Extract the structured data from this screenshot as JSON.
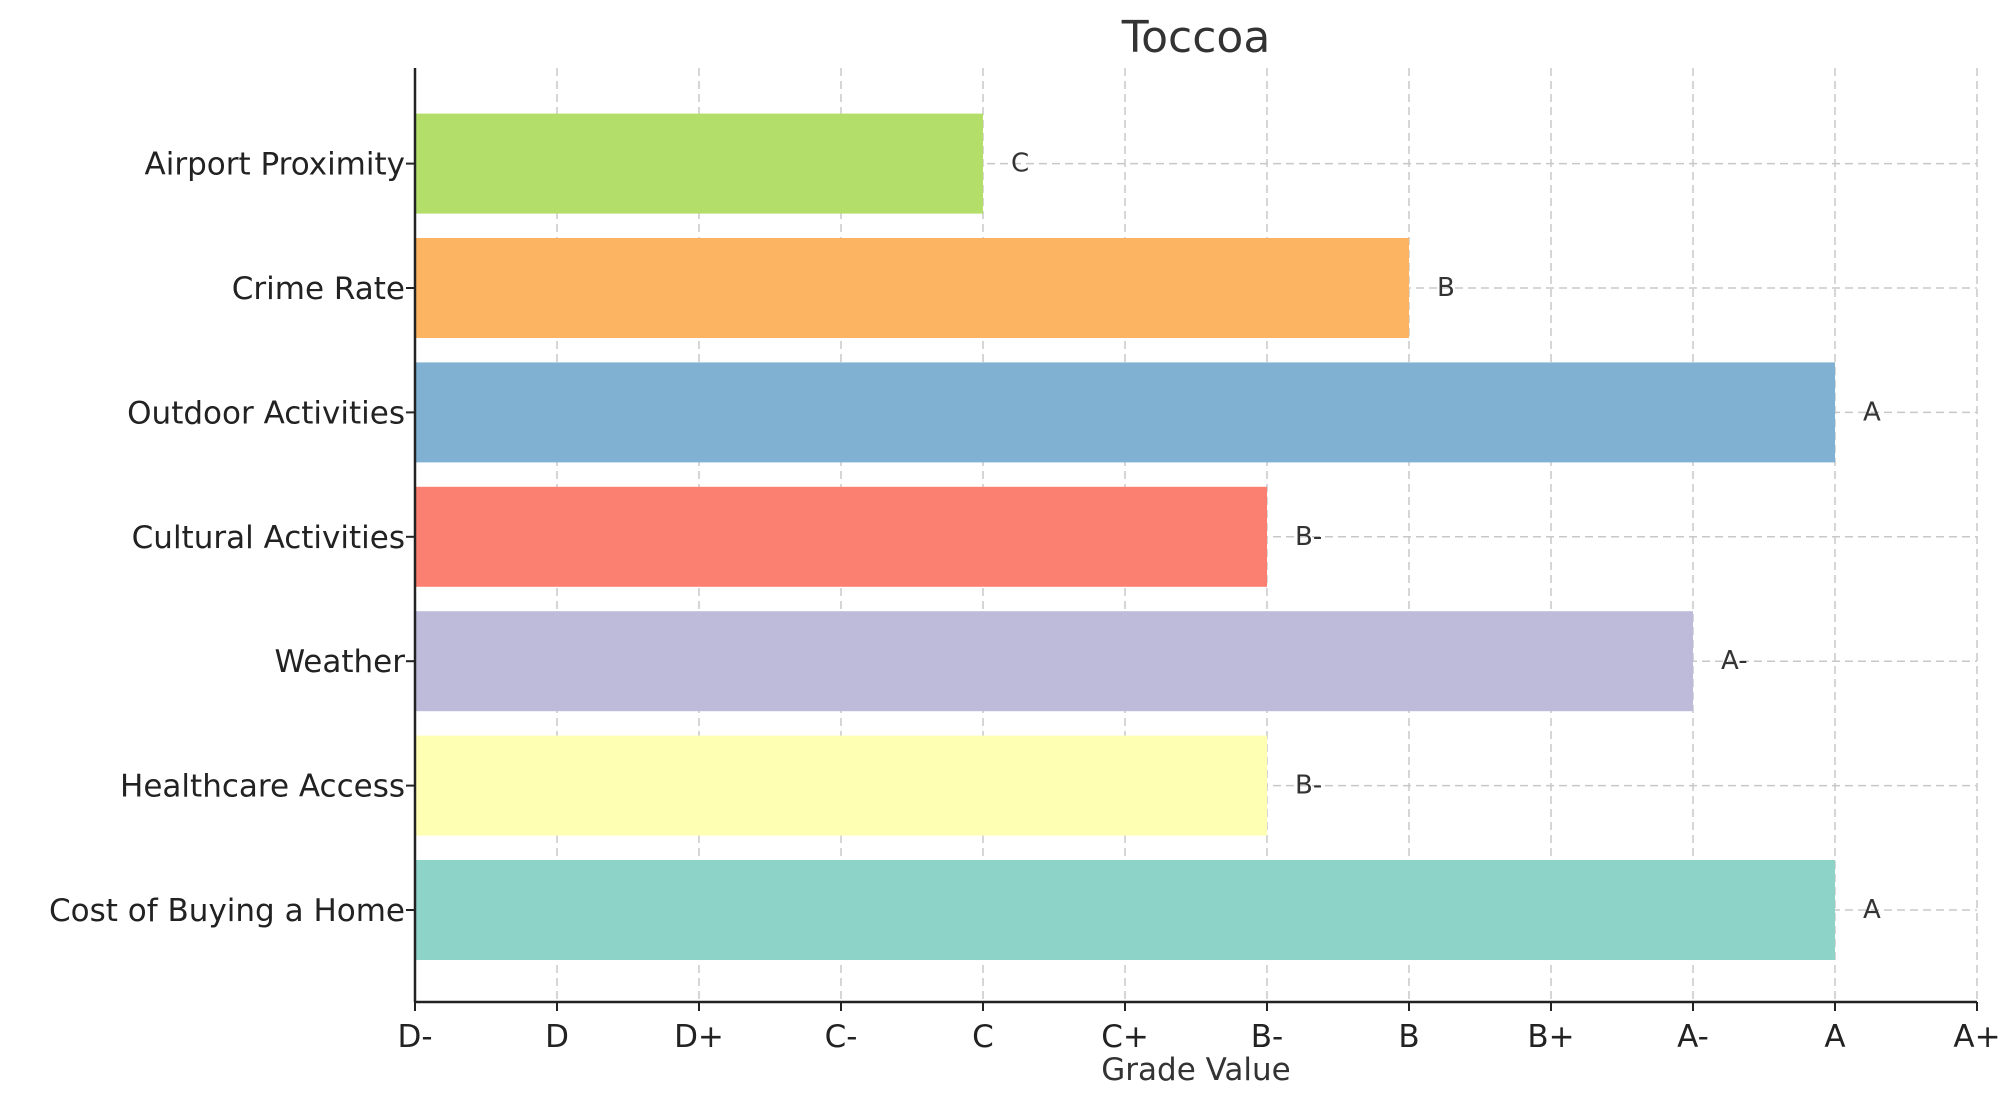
{
  "chart_data": {
    "type": "bar",
    "orientation": "horizontal",
    "title": "Toccoa",
    "xlabel": "Grade Value",
    "ylabel": "",
    "x_ticks": [
      "D-",
      "D",
      "D+",
      "C-",
      "C",
      "C+",
      "B-",
      "B",
      "B+",
      "A-",
      "A",
      "A+"
    ],
    "xlim": [
      0,
      11
    ],
    "grid": true,
    "categories": [
      "Cost of Buying a Home",
      "Healthcare Access",
      "Weather",
      "Cultural Activities",
      "Outdoor Activities",
      "Crime Rate",
      "Airport Proximity"
    ],
    "values": [
      10,
      6,
      9,
      6,
      10,
      7,
      4
    ],
    "value_labels": [
      "A",
      "B-",
      "A-",
      "B-",
      "A",
      "B",
      "C"
    ],
    "colors": [
      "#8dd3c7",
      "#ffffb3",
      "#bebada",
      "#fb8072",
      "#80b1d3",
      "#fdb462",
      "#b3de69"
    ]
  }
}
